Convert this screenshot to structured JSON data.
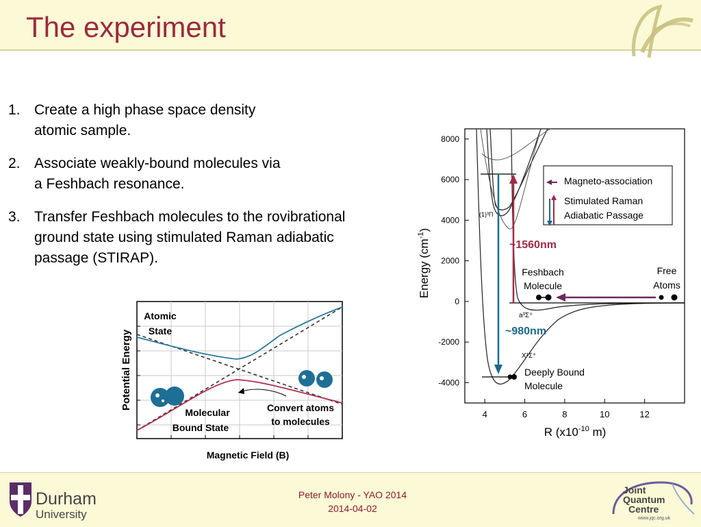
{
  "slide": {
    "title": "The experiment",
    "bullets": [
      {
        "num": "1.",
        "line1": "Create a high phase space density",
        "line2": "atomic sample."
      },
      {
        "num": "2.",
        "line1": "Associate weakly-bound molecules via",
        "line2": "a Feshbach resonance."
      },
      {
        "num": "3.",
        "line1": "Transfer Feshbach molecules to the rovibrational",
        "line2": "ground state using stimulated Raman adiabatic",
        "line3": "passage (STIRAP)."
      }
    ],
    "footer": {
      "author": "Peter Molony - YAO 2014",
      "date": "2014-04-02"
    },
    "logos": {
      "durham_line1": "Durham",
      "durham_line2": "University",
      "jqc_line1": "Joint",
      "jqc_line2": "Quantum",
      "jqc_line3": "Centre",
      "jqc_url": "www.jqc.org.uk"
    }
  },
  "left_diagram": {
    "ylabel": "Potential Energy",
    "xlabel": "Magnetic Field (B)",
    "atomic_state": [
      "Atomic",
      "State"
    ],
    "molecular_state": [
      "Molecular",
      "Bound State"
    ],
    "convert": [
      "Convert atoms",
      "to molecules"
    ]
  },
  "chart_data": {
    "type": "line",
    "xlabel": "R (x10-10 m)",
    "ylabel": "Energy (cm-1)",
    "xlim": [
      3,
      14
    ],
    "ylim": [
      -5000,
      8500
    ],
    "xticks": [
      4,
      6,
      8,
      10,
      12
    ],
    "yticks": [
      -4000,
      -2000,
      0,
      2000,
      4000,
      6000,
      8000
    ],
    "curve_labels": {
      "excited": "(1)³Π",
      "triplet": "a³Σ⁺",
      "singlet": "X¹Σ⁺"
    },
    "legend": [
      {
        "label": "Magneto-association",
        "color": "#6b2a5c"
      },
      {
        "label": "Stimulated Raman",
        "label2": "Adiabatic Passage",
        "color": "#9b2a3e"
      }
    ],
    "annotations": {
      "up_wavelength": "~1560nm",
      "down_wavelength": "~980nm",
      "feshbach": [
        "Feshbach",
        "Molecule"
      ],
      "free": [
        "Free",
        "Atoms"
      ],
      "deeply": [
        "Deeply Bound",
        "Molecule"
      ]
    },
    "transitions": {
      "up_nm": 1560,
      "down_nm": 980
    },
    "colors": {
      "up": "#a02a46",
      "down": "#1c6a8c",
      "magneto": "#6b2a5c"
    }
  }
}
